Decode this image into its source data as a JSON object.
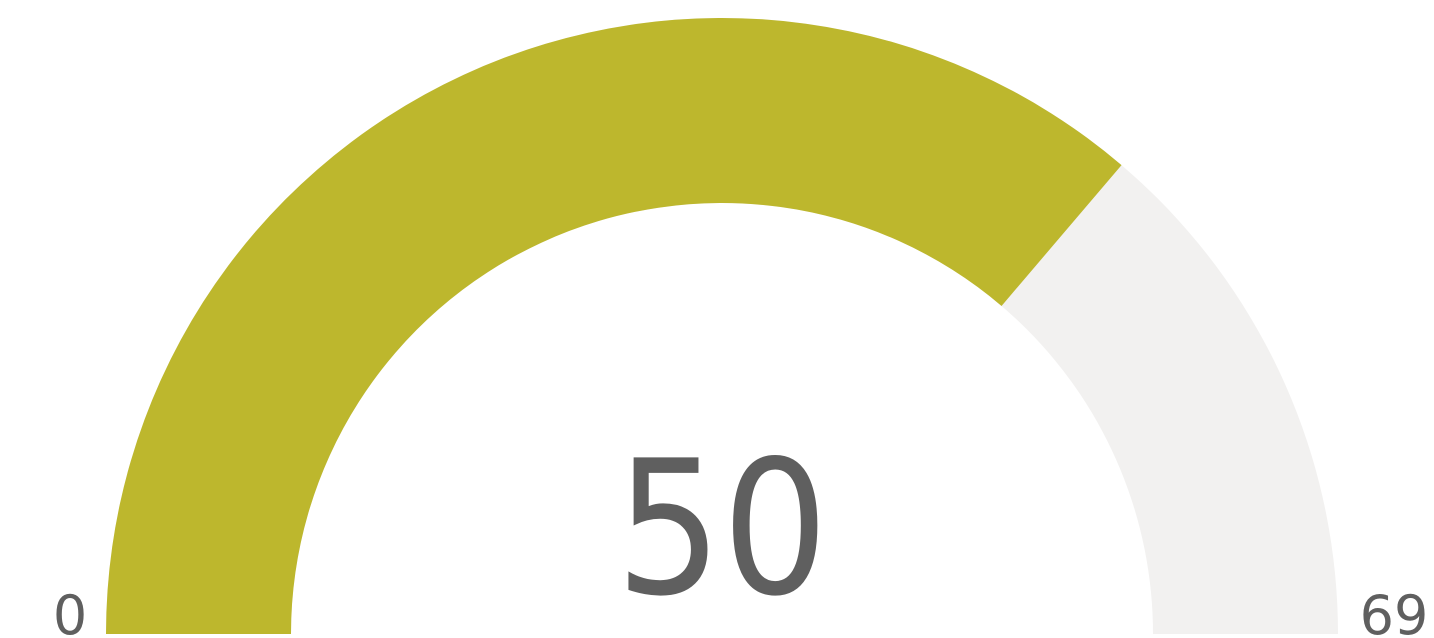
{
  "chart_data": {
    "type": "gauge",
    "value": 50,
    "min": 0,
    "max": 69,
    "labels": {
      "value": "50",
      "min": "0",
      "max": "69"
    },
    "colors": {
      "fill": "#bdb72d",
      "track": "#f2f1f0",
      "text": "#5f5f5f"
    }
  }
}
